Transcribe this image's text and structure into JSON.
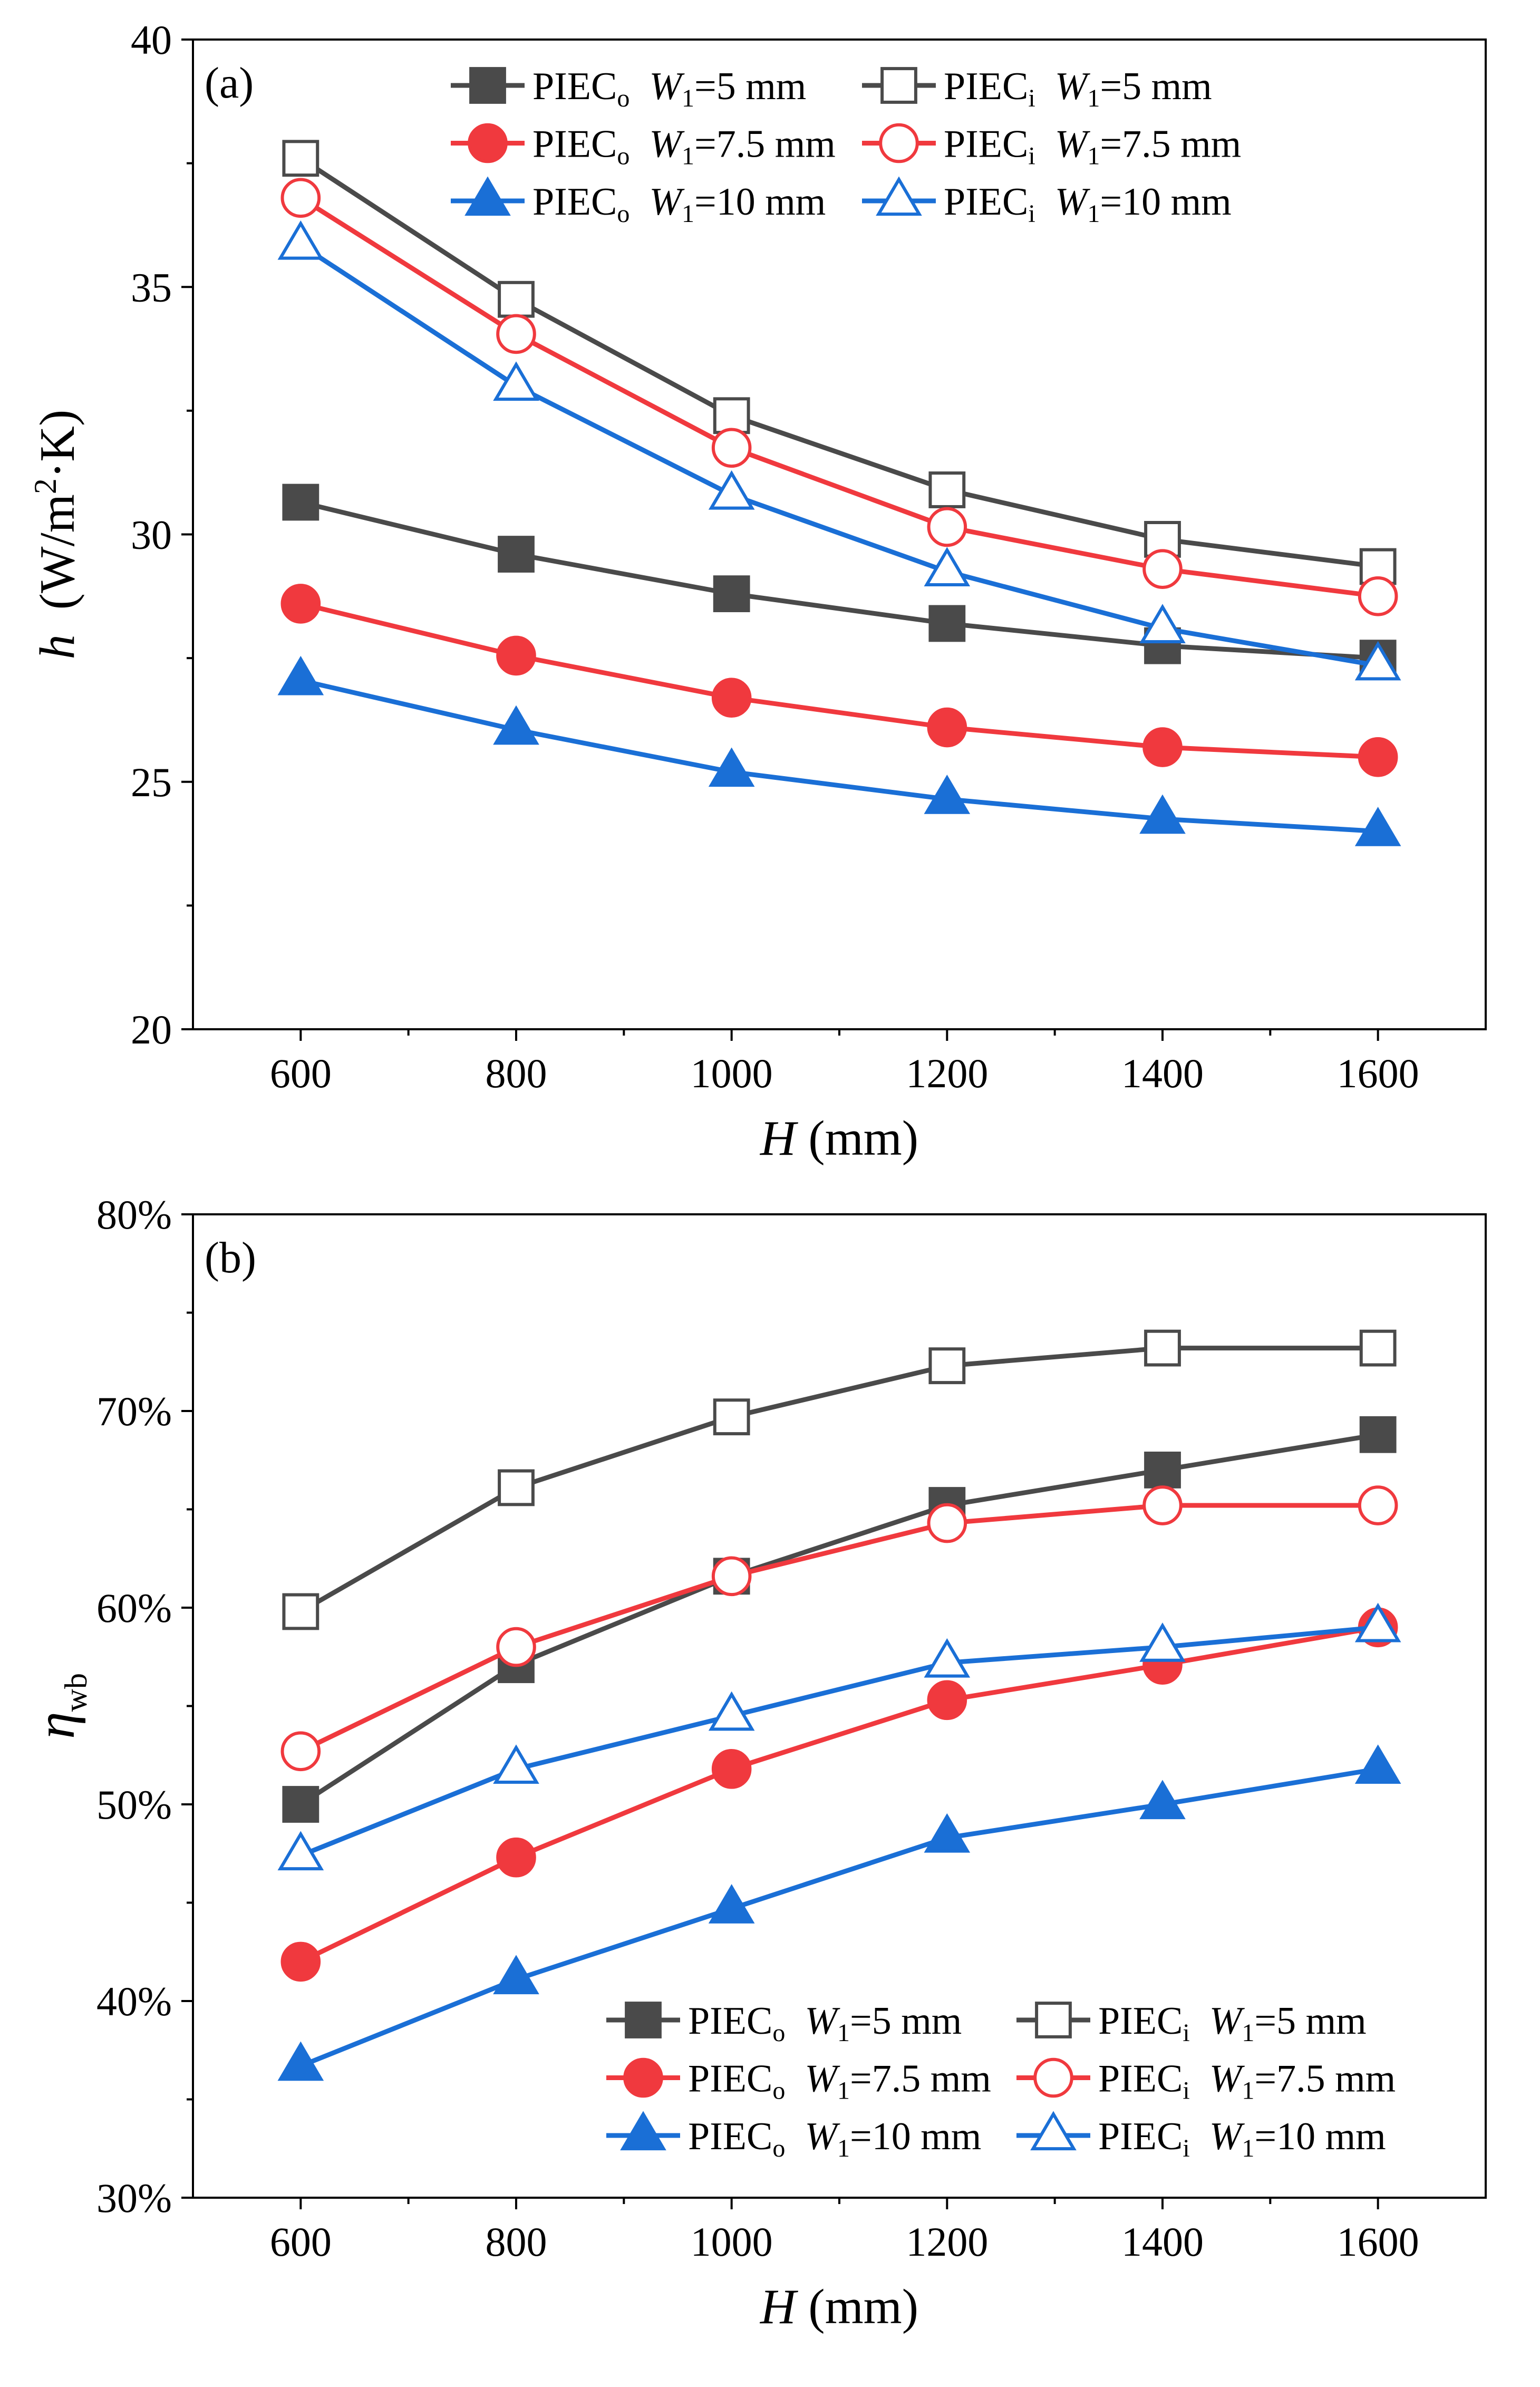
{
  "chart_data": [
    {
      "type": "line",
      "panel_label": "(a)",
      "xlabel": {
        "symbol": "H",
        "unit": " (mm)"
      },
      "ylabel": {
        "symbol": "h",
        "unit_prefix": "(W/m",
        "unit_sup": "2",
        "unit_suffix": "·K)"
      },
      "x": [
        600,
        800,
        1000,
        1200,
        1400,
        1600
      ],
      "xlim": [
        500,
        1700
      ],
      "ylim": [
        20,
        40
      ],
      "xticks": [
        "600",
        "800",
        "1000",
        "1200",
        "1400",
        "1600"
      ],
      "yticks": [
        "20",
        "25",
        "30",
        "35",
        "40"
      ],
      "legend_position": "top",
      "series": [
        {
          "name": "PIECo W1=5 mm",
          "base": "PIEC",
          "base_sub": "o",
          "w": "W",
          "w_sub": "1",
          "rest": "=5 mm",
          "color": "#4a4a4a",
          "marker": "square",
          "filled": true,
          "values": [
            30.65,
            29.6,
            28.8,
            28.2,
            27.75,
            27.5
          ]
        },
        {
          "name": "PIECi W1=5 mm",
          "base": "PIEC",
          "base_sub": "i",
          "w": "W",
          "w_sub": "1",
          "rest": "=5 mm",
          "color": "#4a4a4a",
          "marker": "square",
          "filled": false,
          "values": [
            37.6,
            34.75,
            32.4,
            30.9,
            29.9,
            29.35
          ]
        },
        {
          "name": "PIECo W1=7.5 mm",
          "base": "PIEC",
          "base_sub": "o",
          "w": "W",
          "w_sub": "1",
          "rest": "=7.5 mm",
          "color": "#f0393e",
          "marker": "circle",
          "filled": true,
          "values": [
            28.6,
            27.55,
            26.7,
            26.1,
            25.7,
            25.5
          ]
        },
        {
          "name": "PIECi W1=7.5 mm",
          "base": "PIEC",
          "base_sub": "i",
          "w": "W",
          "w_sub": "1",
          "rest": "=7.5 mm",
          "color": "#f0393e",
          "marker": "circle",
          "filled": false,
          "values": [
            36.8,
            34.05,
            31.75,
            30.15,
            29.3,
            28.75
          ]
        },
        {
          "name": "PIECo W1=10 mm",
          "base": "PIEC",
          "base_sub": "o",
          "w": "W",
          "w_sub": "1",
          "rest": "=10 mm",
          "color": "#1a6fd6",
          "marker": "triangle",
          "filled": true,
          "values": [
            27.05,
            26.05,
            25.2,
            24.65,
            24.25,
            24.0
          ]
        },
        {
          "name": "PIECi W1=10 mm",
          "base": "PIEC",
          "base_sub": "i",
          "w": "W",
          "w_sub": "1",
          "rest": "=10 mm",
          "color": "#1a6fd6",
          "marker": "triangle",
          "filled": false,
          "values": [
            35.85,
            33.0,
            30.8,
            29.25,
            28.1,
            27.35
          ]
        }
      ]
    },
    {
      "type": "line",
      "panel_label": "(b)",
      "xlabel": {
        "symbol": "H",
        "unit": " (mm)"
      },
      "ylabel": {
        "symbol": "η",
        "sub": "wb"
      },
      "x": [
        600,
        800,
        1000,
        1200,
        1400,
        1600
      ],
      "xlim": [
        500,
        1700
      ],
      "ylim": [
        30,
        80
      ],
      "xticks": [
        "600",
        "800",
        "1000",
        "1200",
        "1400",
        "1600"
      ],
      "yticks": [
        "30%",
        "40%",
        "50%",
        "60%",
        "70%",
        "80%"
      ],
      "legend_position": "bottom-right",
      "series": [
        {
          "name": "PIECo W1=5 mm",
          "base": "PIEC",
          "base_sub": "o",
          "w": "W",
          "w_sub": "1",
          "rest": "=5 mm",
          "color": "#4a4a4a",
          "marker": "square",
          "filled": true,
          "values": [
            50.0,
            57.1,
            61.6,
            65.2,
            67.0,
            68.8
          ]
        },
        {
          "name": "PIECi W1=5 mm",
          "base": "PIEC",
          "base_sub": "i",
          "w": "W",
          "w_sub": "1",
          "rest": "=5 mm",
          "color": "#4a4a4a",
          "marker": "square",
          "filled": false,
          "values": [
            59.8,
            66.1,
            69.7,
            72.3,
            73.2,
            73.2
          ]
        },
        {
          "name": "PIECo W1=7.5 mm",
          "base": "PIEC",
          "base_sub": "o",
          "w": "W",
          "w_sub": "1",
          "rest": "=7.5 mm",
          "color": "#f0393e",
          "marker": "circle",
          "filled": true,
          "values": [
            42.0,
            47.3,
            51.8,
            55.3,
            57.1,
            59.0
          ]
        },
        {
          "name": "PIECi W1=7.5 mm",
          "base": "PIEC",
          "base_sub": "i",
          "w": "W",
          "w_sub": "1",
          "rest": "=7.5 mm",
          "color": "#f0393e",
          "marker": "circle",
          "filled": false,
          "values": [
            52.7,
            58.0,
            61.6,
            64.3,
            65.2,
            65.2
          ]
        },
        {
          "name": "PIECo W1=10 mm",
          "base": "PIEC",
          "base_sub": "o",
          "w": "W",
          "w_sub": "1",
          "rest": "=10 mm",
          "color": "#1a6fd6",
          "marker": "triangle",
          "filled": true,
          "values": [
            36.7,
            41.1,
            44.7,
            48.3,
            50.0,
            51.8
          ]
        },
        {
          "name": "PIECi W1=10 mm",
          "base": "PIEC",
          "base_sub": "i",
          "w": "W",
          "w_sub": "1",
          "rest": "=10 mm",
          "color": "#1a6fd6",
          "marker": "triangle",
          "filled": false,
          "values": [
            47.4,
            51.8,
            54.5,
            57.2,
            58.0,
            59.0
          ]
        }
      ]
    }
  ]
}
